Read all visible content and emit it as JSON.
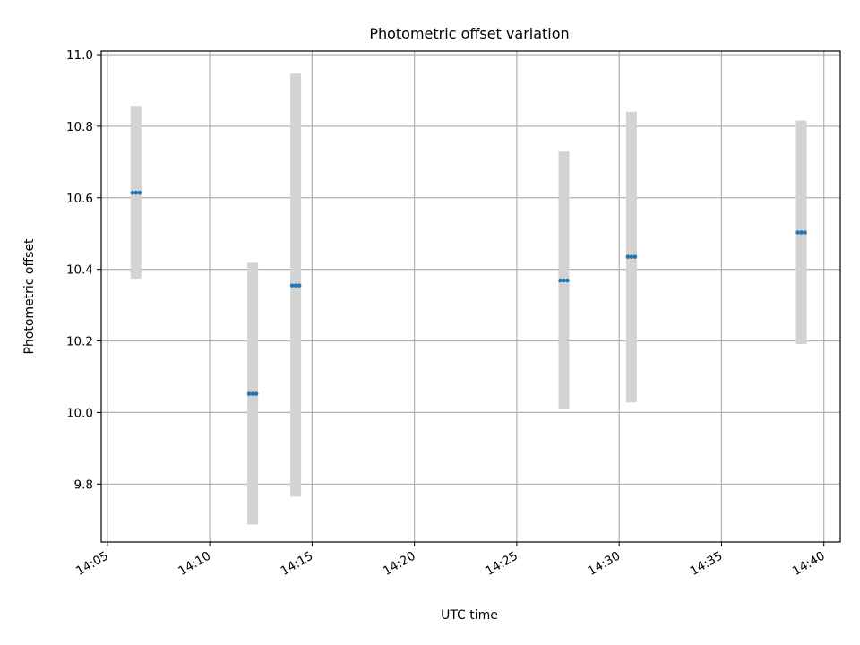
{
  "chart_data": {
    "type": "scatter",
    "title": "Photometric offset variation",
    "xlabel": "UTC time",
    "ylabel": "Photometric offset",
    "x_tick_labels": [
      "14:05",
      "14:10",
      "14:15",
      "14:20",
      "14:25",
      "14:30",
      "14:35",
      "14:40"
    ],
    "y_tick_labels": [
      "9.8",
      "10.0",
      "10.2",
      "10.4",
      "10.6",
      "10.8",
      "11.0"
    ],
    "xlim": [
      "14:04:42",
      "14:40:48"
    ],
    "ylim": [
      9.638,
      11.01
    ],
    "grid": true,
    "series": [
      {
        "points": [
          {
            "time": "14:06:24",
            "offset": 10.614,
            "err_low": 10.374,
            "err_high": 10.857
          },
          {
            "time": "14:12:06",
            "offset": 10.052,
            "err_low": 9.687,
            "err_high": 10.418
          },
          {
            "time": "14:14:12",
            "offset": 10.355,
            "err_low": 9.765,
            "err_high": 10.947
          },
          {
            "time": "14:27:18",
            "offset": 10.369,
            "err_low": 10.011,
            "err_high": 10.729
          },
          {
            "time": "14:30:36",
            "offset": 10.435,
            "err_low": 10.028,
            "err_high": 10.84
          },
          {
            "time": "14:38:54",
            "offset": 10.503,
            "err_low": 10.191,
            "err_high": 10.816
          }
        ]
      }
    ],
    "colors": {
      "marker": "#1f77b4",
      "error_band": "#d3d3d3",
      "grid": "#b0b0b0",
      "axes": "#000000"
    }
  }
}
